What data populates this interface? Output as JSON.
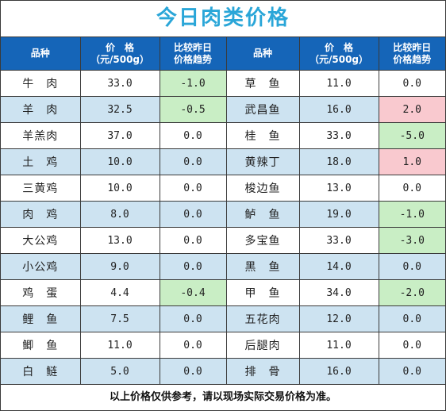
{
  "title": "今日肉类价格",
  "headers": {
    "name": "品种",
    "price_line1": "价　格",
    "price_line2": "（元/500g）",
    "trend_line1": "比较昨日",
    "trend_line2": "价格趋势"
  },
  "rows": [
    {
      "l_name": "牛　肉",
      "l_price": "33.0",
      "l_trend": "-1.0",
      "l_dir": "down",
      "r_name": "草　鱼",
      "r_price": "11.0",
      "r_trend": "0.0",
      "r_dir": "flat"
    },
    {
      "l_name": "羊　肉",
      "l_price": "32.5",
      "l_trend": "-0.5",
      "l_dir": "down",
      "r_name": "武昌鱼",
      "r_price": "16.0",
      "r_trend": "2.0",
      "r_dir": "up"
    },
    {
      "l_name": "羊羔肉",
      "l_price": "37.0",
      "l_trend": "0.0",
      "l_dir": "flat",
      "r_name": "桂　鱼",
      "r_price": "33.0",
      "r_trend": "-5.0",
      "r_dir": "down"
    },
    {
      "l_name": "土　鸡",
      "l_price": "10.0",
      "l_trend": "0.0",
      "l_dir": "flat",
      "r_name": "黄辣丁",
      "r_price": "18.0",
      "r_trend": "1.0",
      "r_dir": "up"
    },
    {
      "l_name": "三黄鸡",
      "l_price": "10.0",
      "l_trend": "0.0",
      "l_dir": "flat",
      "r_name": "梭边鱼",
      "r_price": "13.0",
      "r_trend": "0.0",
      "r_dir": "flat"
    },
    {
      "l_name": "肉　鸡",
      "l_price": "8.0",
      "l_trend": "0.0",
      "l_dir": "flat",
      "r_name": "鲈　鱼",
      "r_price": "19.0",
      "r_trend": "-1.0",
      "r_dir": "down"
    },
    {
      "l_name": "大公鸡",
      "l_price": "13.0",
      "l_trend": "0.0",
      "l_dir": "flat",
      "r_name": "多宝鱼",
      "r_price": "33.0",
      "r_trend": "-3.0",
      "r_dir": "down"
    },
    {
      "l_name": "小公鸡",
      "l_price": "9.0",
      "l_trend": "0.0",
      "l_dir": "flat",
      "r_name": "黑　鱼",
      "r_price": "14.0",
      "r_trend": "0.0",
      "r_dir": "flat"
    },
    {
      "l_name": "鸡　蛋",
      "l_price": "4.4",
      "l_trend": "-0.4",
      "l_dir": "down",
      "r_name": "甲　鱼",
      "r_price": "34.0",
      "r_trend": "-2.0",
      "r_dir": "down"
    },
    {
      "l_name": "鲤　鱼",
      "l_price": "7.5",
      "l_trend": "0.0",
      "l_dir": "flat",
      "r_name": "五花肉",
      "r_price": "12.0",
      "r_trend": "0.0",
      "r_dir": "flat"
    },
    {
      "l_name": "鲫　鱼",
      "l_price": "11.0",
      "l_trend": "0.0",
      "l_dir": "flat",
      "r_name": "后腿肉",
      "r_price": "11.0",
      "r_trend": "0.0",
      "r_dir": "flat"
    },
    {
      "l_name": "白　鲢",
      "l_price": "5.0",
      "l_trend": "0.0",
      "l_dir": "flat",
      "r_name": "排　骨",
      "r_price": "16.0",
      "r_trend": "0.0",
      "r_dir": "flat"
    }
  ],
  "footer": "以上价格仅供参考，请以现场实际交易价格为准。",
  "colors": {
    "title": "#2aa6d8",
    "header_bg": "#1565b8",
    "band_bg": "#cde3f1",
    "down_bg": "#c9eec5",
    "up_bg": "#f9c9cf"
  }
}
